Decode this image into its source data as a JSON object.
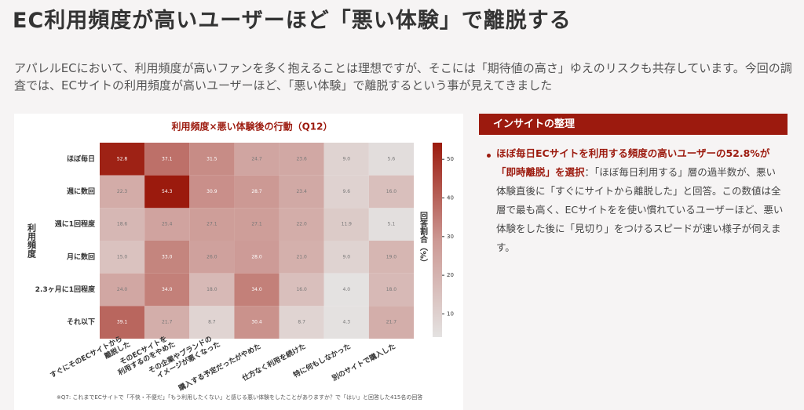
{
  "header": {
    "title": "EC利用頻度が高いユーザーほど「悪い体験」で離脱する",
    "lead": "アパレルECにおいて、利用頻度が高いファンを多く抱えることは理想ですが、そこには「期待値の高さ」ゆえのリスクも共存しています。今回の調査では、ECサイトの利用頻度が高いユーザーほど、「悪い体験」で離脱するという事が見えてきました"
  },
  "chart_data": {
    "type": "heatmap",
    "title": "利用頻度×悪い体験後の行動（Q12）",
    "y_label": "利用頻度",
    "colorbar_label": "回答割合（%）",
    "rows": [
      "ほぼ毎日",
      "週に数回",
      "週に1回程度",
      "月に数回",
      "2.3ヶ月に1回程度",
      "それ以下"
    ],
    "columns": [
      "すぐにそのECサイトから\n離脱した",
      "そのECサイトを\n利用するのをやめた",
      "その企業やブランドの\nイメージが悪くなった",
      "購入する予定だったがやめた",
      "仕方なく利用を続けた",
      "特に何もしなかった",
      "別のサイトで購入した"
    ],
    "values": [
      [
        52.8,
        37.1,
        31.5,
        24.7,
        23.6,
        9.0,
        5.6
      ],
      [
        22.3,
        54.3,
        30.9,
        28.7,
        23.4,
        9.6,
        16.0
      ],
      [
        18.6,
        25.4,
        27.1,
        27.1,
        22.0,
        11.9,
        5.1
      ],
      [
        15.0,
        33.0,
        26.0,
        28.0,
        21.0,
        9.0,
        19.0
      ],
      [
        24.0,
        34.0,
        18.0,
        34.0,
        16.0,
        4.0,
        18.0
      ],
      [
        39.1,
        21.7,
        8.7,
        30.4,
        8.7,
        4.3,
        21.7
      ]
    ],
    "value_labels": [
      [
        "52.8",
        "37.1",
        "31.5",
        "24.7",
        "23.6",
        "9.0",
        "5.6"
      ],
      [
        "22.3",
        "54.3",
        "30.9",
        "28.7",
        "23.4",
        "9.6",
        "16.0"
      ],
      [
        "18.6",
        "25.4",
        "27.1",
        "27.1",
        "22.0",
        "11.9",
        "5.1"
      ],
      [
        "15.0",
        "33.0",
        "26.0",
        "28.0",
        "21.0",
        "9.0",
        "19.0"
      ],
      [
        "24.0",
        "34.0",
        "18.0",
        "34.0",
        "16.0",
        "4.0",
        "18.0"
      ],
      [
        "39.1",
        "21.7",
        "8.7",
        "30.4",
        "8.7",
        "4.3",
        "21.7"
      ]
    ],
    "zlim": [
      4.0,
      54.3
    ],
    "zticks": [
      10,
      20,
      30,
      40,
      50
    ],
    "colorscale": [
      "#e4e2e1",
      "#cc9893",
      "#9b1a0d"
    ],
    "note": "※Q7: これまでECサイトで「不快・不便だ」「もう利用したくない」と感じる悪い体験をしたことがありますか？で「はい」と回答した415名の回答"
  },
  "insight": {
    "title": "インサイトの整理",
    "highlight": "ほぼ毎日ECサイトを利用する頻度の高いユーザーの52.8%が「即時離脱」を選択",
    "body": "：「ほぼ毎日利用する」層の過半数が、悪い体験直後に「すぐにサイトから離脱した」と回答。この数値は全層で最も高く、ECサイトをを使い慣れているユーザーほど、悪い体験をした後に「見切り」をつけるスピードが速い様子が伺えます。"
  }
}
